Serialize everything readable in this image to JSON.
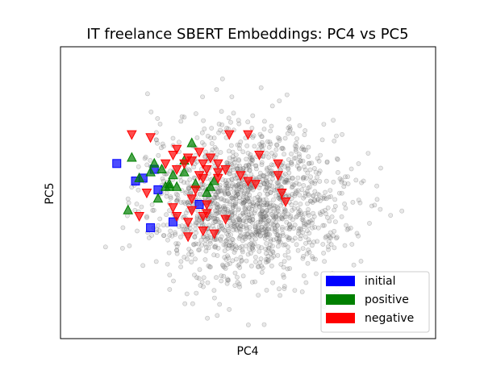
{
  "chart_data": {
    "type": "scatter",
    "title": "IT freelance SBERT Embeddings: PC4 vs PC5",
    "xlabel": "PC4",
    "ylabel": "PC5",
    "xlim": [
      0,
      100
    ],
    "ylim": [
      0,
      100
    ],
    "grid": false,
    "ticks": false,
    "legend_position": "lower-right",
    "background_cloud": {
      "color": "#808080",
      "marker": "circle",
      "count": 1500,
      "center": [
        50,
        46
      ],
      "approx_range": {
        "x": [
          4,
          96
        ],
        "y": [
          4,
          97
        ]
      }
    },
    "series": [
      {
        "name": "initial",
        "marker": "square",
        "color": "#0000ff",
        "points": [
          [
            15,
            60
          ],
          [
            20,
            54
          ],
          [
            22,
            55
          ],
          [
            25,
            58
          ],
          [
            26,
            51
          ],
          [
            37,
            46
          ],
          [
            24,
            38
          ],
          [
            30,
            40
          ]
        ]
      },
      {
        "name": "positive",
        "marker": "triangle-up",
        "color": "#008000",
        "points": [
          [
            19,
            62
          ],
          [
            21,
            55
          ],
          [
            24,
            57
          ],
          [
            25,
            60
          ],
          [
            27,
            58
          ],
          [
            28,
            52
          ],
          [
            29,
            52
          ],
          [
            30,
            56
          ],
          [
            29,
            53
          ],
          [
            31,
            52
          ],
          [
            33,
            61
          ],
          [
            33,
            57
          ],
          [
            35,
            67
          ],
          [
            40,
            52
          ],
          [
            41,
            54
          ],
          [
            39,
            50
          ],
          [
            36,
            53
          ],
          [
            18,
            44
          ],
          [
            26,
            48
          ]
        ]
      },
      {
        "name": "negative",
        "marker": "triangle-down",
        "color": "#ff0000",
        "points": [
          [
            19,
            70
          ],
          [
            24,
            69
          ],
          [
            28,
            60
          ],
          [
            30,
            63
          ],
          [
            31,
            65
          ],
          [
            33,
            60
          ],
          [
            35,
            61
          ],
          [
            37,
            64
          ],
          [
            38,
            60
          ],
          [
            40,
            62
          ],
          [
            39,
            58
          ],
          [
            37,
            56
          ],
          [
            42,
            57
          ],
          [
            42,
            60
          ],
          [
            45,
            70
          ],
          [
            50,
            70
          ],
          [
            42,
            55
          ],
          [
            38,
            55
          ],
          [
            36,
            51
          ],
          [
            35,
            48
          ],
          [
            35,
            44
          ],
          [
            34,
            40
          ],
          [
            39,
            43
          ],
          [
            38,
            42
          ],
          [
            39,
            46
          ],
          [
            44,
            41
          ],
          [
            38,
            37
          ],
          [
            41,
            36
          ],
          [
            34,
            35
          ],
          [
            48,
            56
          ],
          [
            50,
            54
          ],
          [
            52,
            53
          ],
          [
            53,
            63
          ],
          [
            58,
            60
          ],
          [
            58,
            56
          ],
          [
            59,
            50
          ],
          [
            60,
            47
          ],
          [
            30,
            45
          ],
          [
            31,
            42
          ],
          [
            23,
            50
          ],
          [
            21,
            42
          ],
          [
            31,
            58
          ],
          [
            34,
            62
          ],
          [
            44,
            58
          ]
        ]
      }
    ]
  }
}
